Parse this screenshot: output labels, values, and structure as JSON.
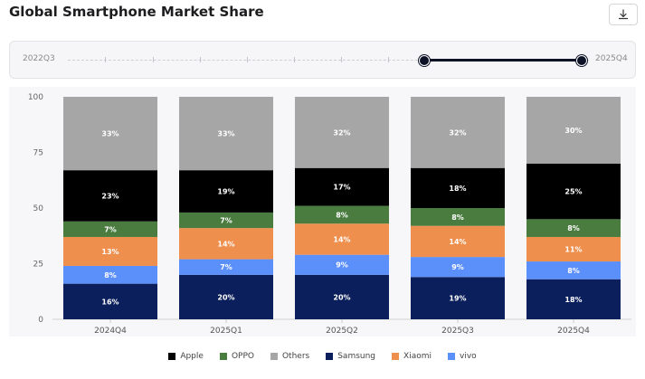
{
  "title": "Global Smartphone Market Share",
  "header": {
    "download_icon": "download-icon"
  },
  "range": {
    "start_label": "2022Q3",
    "end_label": "2025Q4"
  },
  "chart_data": {
    "type": "bar",
    "stacked": true,
    "categories": [
      "2024Q4",
      "2025Q1",
      "2025Q2",
      "2025Q3",
      "2025Q4"
    ],
    "ylim": [
      0,
      100
    ],
    "yticks": [
      0,
      25,
      50,
      75,
      100
    ],
    "series": [
      {
        "name": "Samsung",
        "color": "#0a1f5c",
        "values": [
          16,
          20,
          20,
          19,
          18
        ]
      },
      {
        "name": "vivo",
        "color": "#5b8ff9",
        "values": [
          8,
          7,
          9,
          9,
          8
        ]
      },
      {
        "name": "Xiaomi",
        "color": "#ef8f4d",
        "values": [
          13,
          14,
          14,
          14,
          11
        ]
      },
      {
        "name": "OPPO",
        "color": "#4a7c3f",
        "values": [
          7,
          7,
          8,
          8,
          8
        ]
      },
      {
        "name": "Apple",
        "color": "#000000",
        "values": [
          23,
          19,
          17,
          18,
          25
        ]
      },
      {
        "name": "Others",
        "color": "#a6a6a6",
        "values": [
          33,
          33,
          32,
          32,
          30
        ]
      }
    ],
    "data_labels": [
      [
        "16%",
        "8%",
        "13%",
        "7%",
        "23%",
        "33%"
      ],
      [
        "20%",
        "7%",
        "14%",
        "7%",
        "19%",
        "33%"
      ],
      [
        "20%",
        "9%",
        "14%",
        "8%",
        "17%",
        "32%"
      ],
      [
        "19%",
        "9%",
        "14%",
        "8%",
        "18%",
        "32%"
      ],
      [
        "18%",
        "8%",
        "11%",
        "8%",
        "25%",
        "30%"
      ]
    ],
    "legend": [
      "Apple",
      "OPPO",
      "Others",
      "Samsung",
      "Xiaomi",
      "vivo"
    ],
    "legend_position": "bottom",
    "grid": false
  }
}
